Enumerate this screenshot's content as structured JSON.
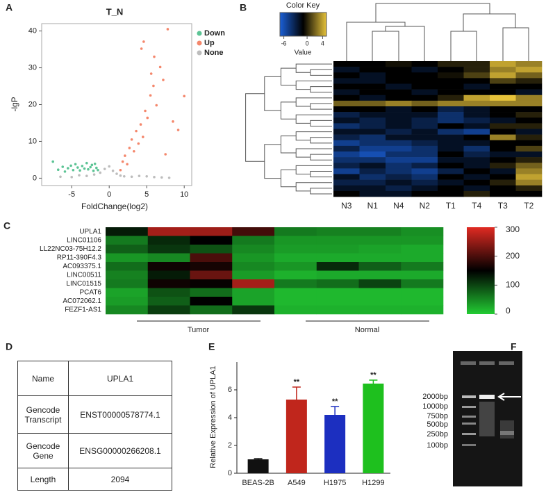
{
  "chart_data": [
    {
      "type": "scatter",
      "panel": "A",
      "title": "T_N",
      "xlabel": "FoldChange(log2)",
      "ylabel": "-lgP",
      "xlim": [
        -9,
        11
      ],
      "ylim": [
        -2,
        42
      ],
      "xticks": [
        -5,
        0,
        5,
        10
      ],
      "yticks": [
        0,
        10,
        20,
        30,
        40
      ],
      "series": [
        {
          "name": "Down",
          "color": "#5cc495",
          "x": [
            -7.5,
            -6.8,
            -6.2,
            -5.9,
            -5.5,
            -5.1,
            -4.8,
            -4.5,
            -4.2,
            -3.9,
            -3.6,
            -3.3,
            -3.0,
            -2.8,
            -2.5,
            -2.3,
            -2.1,
            -1.9,
            -1.7,
            -1.5
          ],
          "values": [
            4.5,
            2.3,
            3.1,
            1.8,
            2.7,
            3.4,
            2.2,
            3.8,
            2.9,
            2.1,
            3.3,
            2.6,
            4.1,
            2.4,
            3.0,
            3.6,
            2.0,
            3.9,
            2.8,
            2.2
          ]
        },
        {
          "name": "Up",
          "color": "#f4876c",
          "x": [
            1.5,
            1.8,
            2.1,
            2.4,
            2.7,
            3.0,
            3.3,
            3.6,
            3.9,
            4.2,
            4.5,
            4.8,
            5.1,
            5.5,
            5.9,
            6.3,
            6.8,
            7.2,
            7.8,
            8.5,
            9.2,
            10.0,
            4.3,
            4.6,
            5.6,
            6.0,
            7.5
          ],
          "values": [
            2.2,
            4.5,
            6.1,
            3.8,
            8.2,
            10.5,
            7.3,
            12.8,
            9.4,
            14.6,
            11.2,
            18.3,
            16.4,
            22.5,
            25.1,
            19.8,
            30.2,
            26.7,
            40.5,
            15.4,
            13.1,
            22.3,
            35.2,
            37.1,
            28.4,
            33.0,
            6.5
          ]
        },
        {
          "name": "None",
          "color": "#bdbdbd",
          "x": [
            -6.5,
            -5,
            -4,
            -3,
            -2,
            -1.2,
            -0.6,
            0,
            0.5,
            1.0,
            1.5,
            2.0,
            3,
            4,
            5,
            6,
            7,
            8
          ],
          "values": [
            0.4,
            0.3,
            0.8,
            0.6,
            1.0,
            1.5,
            2.5,
            3.2,
            2.0,
            1.2,
            0.7,
            0.5,
            0.4,
            0.6,
            0.5,
            0.3,
            0.2,
            0.1
          ]
        }
      ]
    },
    {
      "type": "heatmap",
      "panel": "B",
      "key_title": "Color Key",
      "key_label": "Value",
      "clim": [
        -7,
        5
      ],
      "key_ticks": [
        -6,
        0,
        4
      ],
      "colorscale": [
        "#1a5fd6",
        "#000000",
        "#e6c23a"
      ],
      "columns": [
        "N3",
        "N1",
        "N4",
        "N2",
        "T1",
        "T4",
        "T3",
        "T2"
      ],
      "values": [
        [
          -1,
          -1,
          -0.5,
          -1,
          0,
          0,
          4,
          3
        ],
        [
          -2,
          -1,
          -1,
          -2,
          -1,
          0,
          3,
          4
        ],
        [
          -1,
          -2,
          -1,
          -1,
          -0.5,
          1,
          4,
          2
        ],
        [
          -2,
          -2,
          -1,
          -1,
          -1,
          -1,
          1,
          0
        ],
        [
          -1,
          -1,
          -2,
          -1,
          -1,
          -2,
          -1,
          -1
        ],
        [
          -2,
          -1,
          -1,
          -2,
          -1,
          -1,
          -1,
          -2
        ],
        [
          -1,
          -2,
          -1,
          -1,
          0,
          4,
          5,
          3
        ],
        [
          2,
          2,
          3,
          2,
          3,
          3,
          3,
          3
        ],
        [
          -1,
          -1,
          -2,
          -1,
          -3,
          -2,
          -1,
          -1
        ],
        [
          -3,
          -2,
          -2,
          -2,
          -4,
          -2,
          -1,
          0
        ],
        [
          -2,
          -3,
          -2,
          -3,
          -4,
          -3,
          -2,
          -1
        ],
        [
          -4,
          -3,
          -2,
          -3,
          -1,
          -2,
          0,
          0
        ],
        [
          -2,
          -2,
          -3,
          -2,
          -4,
          -5,
          -1,
          -2
        ],
        [
          -3,
          -4,
          -2,
          -2,
          -2,
          -1,
          3,
          0
        ],
        [
          -5,
          -4,
          -4,
          -3,
          -2,
          -2,
          -1,
          -1
        ],
        [
          -3,
          -5,
          -5,
          -4,
          -2,
          -4,
          -1,
          1
        ],
        [
          -5,
          -6,
          -4,
          -4,
          -1,
          -3,
          -2,
          -2
        ],
        [
          -4,
          -4,
          -5,
          -5,
          -2,
          -2,
          -1,
          0
        ],
        [
          -3,
          -2,
          -4,
          -3,
          -1,
          -2,
          0,
          2
        ],
        [
          -5,
          -3,
          -4,
          -5,
          -3,
          -1,
          -2,
          3
        ],
        [
          -2,
          -4,
          -3,
          -4,
          -1,
          -2,
          -1,
          4
        ],
        [
          -3,
          -3,
          -2,
          -3,
          -2,
          -1,
          0,
          3
        ],
        [
          -2,
          -2,
          -3,
          -2,
          -1,
          -2,
          -1,
          0
        ],
        [
          -1,
          -2,
          -2,
          -1,
          -1,
          0,
          -1,
          -1
        ]
      ]
    },
    {
      "type": "heatmap",
      "panel": "C",
      "clim": [
        0,
        300
      ],
      "key_ticks": [
        0,
        100,
        200,
        300
      ],
      "colorscale": [
        "#22cc33",
        "#000000",
        "#e02a22"
      ],
      "groups": [
        "Tumor",
        "Normal"
      ],
      "rows": [
        "UPLA1",
        "LINC01106",
        "LL22NC03-75H12.2",
        "RP11-390F4.3",
        "AC093375.1",
        "LINC00511",
        "LINC01515",
        "PCAT6",
        "AC072062.1",
        "FEZF1-AS1"
      ],
      "values": [
        [
          130,
          260,
          255,
          195,
          60,
          55,
          55,
          45
        ],
        [
          60,
          120,
          150,
          60,
          40,
          40,
          40,
          40
        ],
        [
          80,
          110,
          90,
          50,
          35,
          35,
          30,
          25
        ],
        [
          40,
          50,
          200,
          40,
          25,
          25,
          25,
          25
        ],
        [
          70,
          160,
          165,
          50,
          40,
          120,
          80,
          60
        ],
        [
          55,
          130,
          220,
          35,
          20,
          25,
          25,
          25
        ],
        [
          60,
          160,
          155,
          260,
          60,
          70,
          100,
          60
        ],
        [
          30,
          90,
          70,
          30,
          15,
          15,
          15,
          15
        ],
        [
          35,
          80,
          150,
          30,
          15,
          15,
          15,
          15
        ],
        [
          50,
          105,
          70,
          110,
          20,
          20,
          20,
          20
        ]
      ]
    },
    {
      "type": "bar",
      "panel": "E",
      "ylabel": "Relative Expression of UPLA1",
      "categories": [
        "BEAS-2B",
        "A549",
        "H1975",
        "H1299"
      ],
      "values": [
        1.0,
        5.3,
        4.2,
        6.45
      ],
      "errors": [
        0.05,
        0.9,
        0.6,
        0.25
      ],
      "significance": [
        null,
        "**",
        "**",
        "**"
      ],
      "colors": [
        "#111111",
        "#c0261c",
        "#1c2fc0",
        "#1ec01e"
      ],
      "ylim": [
        0,
        8
      ],
      "yticks": [
        0,
        2,
        4,
        6
      ]
    }
  ],
  "table": {
    "panel": "D",
    "rows": [
      [
        "Name",
        "UPLA1"
      ],
      [
        "Gencode Transcript",
        "ENST00000578774.1"
      ],
      [
        "Gencode Gene",
        "ENSG00000266208.1"
      ],
      [
        "Length",
        "2094"
      ]
    ]
  },
  "gel": {
    "panel": "F",
    "ladder": [
      "2000bp",
      "1000bp",
      "750bp",
      "500bp",
      "250bp",
      "100bp"
    ]
  }
}
